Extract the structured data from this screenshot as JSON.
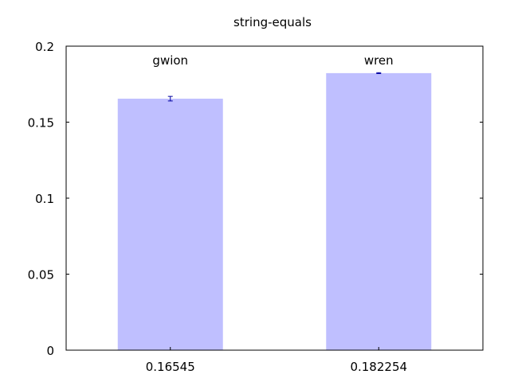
{
  "chart_data": {
    "type": "bar",
    "title": "string-equals",
    "xlabel": "",
    "ylabel": "",
    "ylim": [
      0,
      0.2
    ],
    "yticks": [
      {
        "value": 0,
        "label": "0"
      },
      {
        "value": 0.05,
        "label": "0.05"
      },
      {
        "value": 0.1,
        "label": "0.1"
      },
      {
        "value": 0.15,
        "label": "0.15"
      },
      {
        "value": 0.2,
        "label": "0.2"
      }
    ],
    "grid": false,
    "bar_color": "#bfbfff",
    "error_color": "#0000a0",
    "bars": [
      {
        "name": "gwion",
        "value": 0.16545,
        "value_label": "0.16545",
        "error": 0.0015
      },
      {
        "name": "wren",
        "value": 0.182254,
        "value_label": "0.182254",
        "error": 0.0003
      }
    ]
  }
}
